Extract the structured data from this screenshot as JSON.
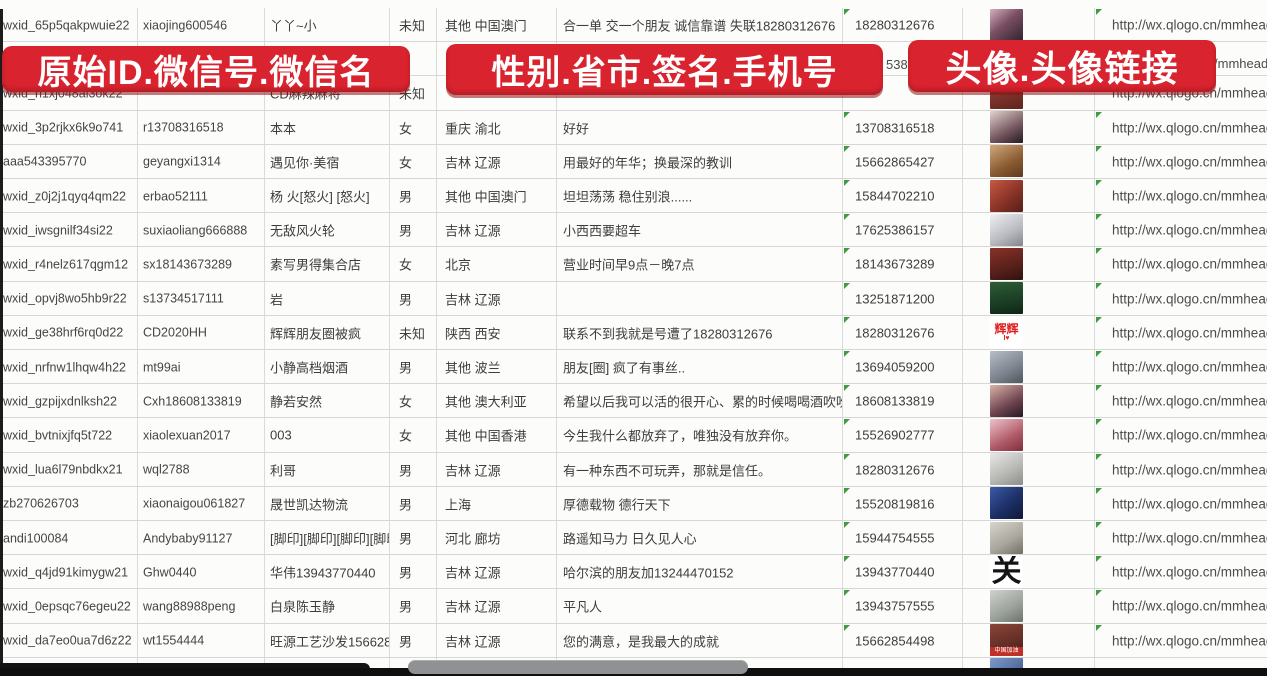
{
  "banners": [
    {
      "label": "原始ID.微信号.微信名"
    },
    {
      "label": "性别.省市.签名.手机号"
    },
    {
      "label": "头像.头像链接"
    }
  ],
  "fragments": {
    "row2_phone": "5386",
    "row2_link": "/mmhead"
  },
  "colors": {
    "banner_red": "#d9232e",
    "marker_green": "#3f9c44",
    "grid_line": "#d6d6d4",
    "text": "#3d3d3d"
  },
  "link_text": "http://wx.qlogo.cn/mmhead",
  "rows": [
    {
      "wxid": "wxid_65p5qakpwuie22",
      "wx_id": "xiaojing600546",
      "name": "丫丫~小",
      "gender": "未知",
      "region": "其他 中国澳门",
      "signature": "合一单 交一个朋友 诚信靠谱 失联18280312676",
      "phone": "18280312676",
      "link": "http://wx.qlogo.cn/mmhead",
      "avatar": {
        "bg": "linear-gradient(140deg,#d3b0bf 0%,#7a4f63 45%,#2f222e 100%)"
      }
    },
    {
      "wxid": "",
      "wx_id": "",
      "name": "",
      "gender": "",
      "region": "",
      "signature": "",
      "phone": "",
      "link": "",
      "avatar": null,
      "covered": true
    },
    {
      "wxid": "wxid_h1xj048al3ok22",
      "wx_id": "",
      "name": "CD麻辣麻将",
      "gender": "未知",
      "region": "",
      "signature": "",
      "phone": "",
      "link": "http://wx.qlogo.cn/mmhead",
      "avatar": {
        "bg": "linear-gradient(160deg,#a0453a,#5e241d)"
      }
    },
    {
      "wxid": "wxid_3p2rjkx6k9o741",
      "wx_id": "r13708316518",
      "name": "本本",
      "gender": "女",
      "region": "重庆 渝北",
      "signature": "好好",
      "phone": "13708316518",
      "link": "http://wx.qlogo.cn/mmhead",
      "avatar": {
        "bg": "linear-gradient(150deg,#e3d3cd,#73565e 60%,#241a22)"
      }
    },
    {
      "wxid": "aaa543395770",
      "wx_id": "geyangxi1314",
      "name": "遇见你·美宿",
      "gender": "女",
      "region": "吉林 辽源",
      "signature": "用最好的年华；换最深的教训",
      "phone": "15662865427",
      "link": "http://wx.qlogo.cn/mmhead",
      "avatar": {
        "bg": "linear-gradient(150deg,#d0a87e,#8a5a30 60%,#5c3a1e)"
      }
    },
    {
      "wxid": "wxid_z0j2j1qyq4qm22",
      "wx_id": "erbao52111",
      "name": "杨 火[怒火] [怒火]",
      "gender": "男",
      "region": "其他 中国澳门",
      "signature": "坦坦荡荡 稳住别浪......",
      "phone": "15844702210",
      "link": "http://wx.qlogo.cn/mmhead",
      "avatar": {
        "bg": "linear-gradient(140deg,#c75a42,#8a3328 55%,#541f18)"
      }
    },
    {
      "wxid": "wxid_iwsgnilf34si22",
      "wx_id": "suxiaoliang666888",
      "name": "无敌风火轮",
      "gender": "男",
      "region": "吉林 辽源",
      "signature": "小西西要超车",
      "phone": "17625386157",
      "link": "http://wx.qlogo.cn/mmhead",
      "avatar": {
        "bg": "linear-gradient(150deg,#f0f0f2,#b9bac0 60%,#84858c)"
      }
    },
    {
      "wxid": "wxid_r4nelz617qgm12",
      "wx_id": "sx18143673289",
      "name": "素写男得集合店",
      "gender": "女",
      "region": "北京",
      "signature": "营业时间早9点－晚7点",
      "phone": "18143673289",
      "link": "http://wx.qlogo.cn/mmhead",
      "avatar": {
        "bg": "linear-gradient(160deg,#8a3227,#57201a 60%,#2e120e)"
      }
    },
    {
      "wxid": "wxid_opvj8wo5hb9r22",
      "wx_id": "s13734517111",
      "name": "岩",
      "gender": "男",
      "region": "吉林 辽源",
      "signature": "",
      "phone": "13251871200",
      "link": "http://wx.qlogo.cn/mmhead",
      "avatar": {
        "bg": "linear-gradient(170deg,#2e5c35,#173821 70%,#0d2415)"
      }
    },
    {
      "wxid": "wxid_ge38hrf6rq0d22",
      "wx_id": "CD2020HH",
      "name": "辉辉朋友圈被疯",
      "gender": "未知",
      "region": "陕西 西安",
      "signature": "联系不到我就是号遭了18280312676",
      "phone": "18280312676",
      "link": "http://wx.qlogo.cn/mmhead",
      "avatar": {
        "bg": "#ffffff",
        "label": "辉辉",
        "label_color": "#e02020",
        "label_size": 12,
        "sub": "I♥",
        "sub_color": "#e02020"
      }
    },
    {
      "wxid": "wxid_nrfnw1lhqw4h22",
      "wx_id": "mt99ai",
      "name": "小静高档烟酒",
      "gender": "男",
      "region": "其他 波兰",
      "signature": "朋友[圈] 疯了有事丝..",
      "phone": "13694059200",
      "link": "http://wx.qlogo.cn/mmhead",
      "avatar": {
        "bg": "linear-gradient(150deg,#b8bec6,#7d838d 60%,#4f555f)"
      }
    },
    {
      "wxid": "wxid_gzpijxdnlksh22",
      "wx_id": "Cxh18608133819",
      "name": "静若安然",
      "gender": "女",
      "region": "其他 澳大利亚",
      "signature": "希望以后我可以活的很开心、累的时候喝喝酒吹吹[",
      "phone": "18608133819",
      "link": "http://wx.qlogo.cn/mmhead",
      "avatar": {
        "bg": "linear-gradient(150deg,#d9b3a8,#6e4450 60%,#251822)"
      }
    },
    {
      "wxid": "wxid_bvtnixjfq5t722",
      "wx_id": "xiaolexuan2017",
      "name": "003",
      "gender": "女",
      "region": "其他 中国香港",
      "signature": "今生我什么都放弃了，唯独没有放弃你。",
      "phone": "15526902777",
      "link": "http://wx.qlogo.cn/mmhead",
      "avatar": {
        "bg": "linear-gradient(150deg,#eec3cc,#b05a68 60%,#7c2f3e)"
      }
    },
    {
      "wxid": "wxid_lua6l79nbdkx21",
      "wx_id": "wql2788",
      "name": "利哥",
      "gender": "男",
      "region": "吉林 辽源",
      "signature": "有一种东西不可玩弄，那就是信任。",
      "phone": "18280312676",
      "link": "http://wx.qlogo.cn/mmhead",
      "avatar": {
        "bg": "linear-gradient(150deg,#e8e8e6,#b5b5b2 60%,#8c8c8a)"
      }
    },
    {
      "wxid": "zb270626703",
      "wx_id": "xiaonaigou061827",
      "name": "晟世凯达物流",
      "gender": "男",
      "region": "上海",
      "signature": "厚德载物 德行天下",
      "phone": "15520819816",
      "link": "http://wx.qlogo.cn/mmhead",
      "avatar": {
        "bg": "linear-gradient(140deg,#3a5aa8,#1d2f66 55%,#0e1838)"
      }
    },
    {
      "wxid": "andi100084",
      "wx_id": "Andybaby91127",
      "name": "[脚印][脚印][脚印][脚印",
      "gender": "男",
      "region": "河北 廊坊",
      "signature": "路遥知马力 日久见人心",
      "phone": "15944754555",
      "link": "http://wx.qlogo.cn/mmhead",
      "avatar": {
        "bg": "linear-gradient(150deg,#d6d4cc,#a8a69c 60%,#6f6d64)"
      }
    },
    {
      "wxid": "wxid_q4jd91kimygw21",
      "wx_id": "Ghw0440",
      "name": "华伟13943770440",
      "gender": "男",
      "region": "吉林 辽源",
      "signature": "哈尔滨的朋友加13244470152",
      "phone": "13943770440",
      "link": "http://wx.qlogo.cn/mmhead",
      "avatar": {
        "bg": "#ffffff",
        "label": "关",
        "label_color": "#141414",
        "label_size": 30
      }
    },
    {
      "wxid": "wxid_0epsqc76egeu22",
      "wx_id": "wang88988peng",
      "name": "白泉陈玉静",
      "gender": "男",
      "region": "吉林 辽源",
      "signature": "平凡人",
      "phone": "13943757555",
      "link": "http://wx.qlogo.cn/mmhead",
      "avatar": {
        "bg": "linear-gradient(150deg,#cfd3cf,#9aa09a 60%,#6c726c)"
      }
    },
    {
      "wxid": "wxid_da7eo0ua7d6z22",
      "wx_id": "wt1554444",
      "name": "旺源工艺沙发15662854",
      "gender": "男",
      "region": "吉林 辽源",
      "signature": "您的满意，是我最大的成就",
      "phone": "15662854498",
      "link": "http://wx.qlogo.cn/mmhead",
      "avatar": {
        "bg": "linear-gradient(160deg,#8a4538,#5c2a22 70%,#3a1712)",
        "strip": "中国加油"
      }
    },
    {
      "wxid": "",
      "wx_id": "",
      "name": "",
      "gender": "",
      "region": "",
      "signature": "",
      "phone": "",
      "link": "",
      "avatar": {
        "bg": "linear-gradient(140deg,#7d9ac9,#33497e)"
      },
      "partial": true
    }
  ]
}
